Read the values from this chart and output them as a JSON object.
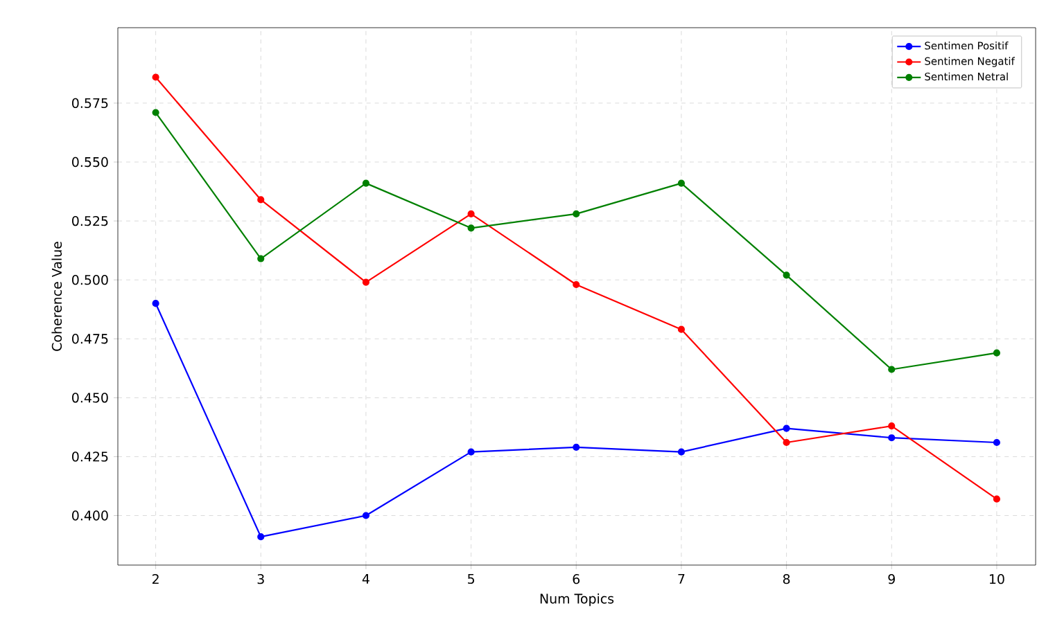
{
  "chart_data": {
    "type": "line",
    "xlabel": "Num Topics",
    "ylabel": "Coherence Value",
    "x": [
      2,
      3,
      4,
      5,
      6,
      7,
      8,
      9,
      10
    ],
    "series": [
      {
        "name": "Sentimen Positif",
        "color": "#0000ff",
        "values": [
          0.49,
          0.391,
          0.4,
          0.427,
          0.429,
          0.427,
          0.437,
          0.433,
          0.431
        ]
      },
      {
        "name": "Sentimen Negatif",
        "color": "#ff0000",
        "values": [
          0.586,
          0.534,
          0.499,
          0.528,
          0.498,
          0.479,
          0.431,
          0.438,
          0.407
        ]
      },
      {
        "name": "Sentimen Netral",
        "color": "#008000",
        "values": [
          0.571,
          0.509,
          0.541,
          0.522,
          0.528,
          0.541,
          0.502,
          0.462,
          0.469
        ]
      }
    ],
    "xlim": [
      1.64,
      10.37
    ],
    "ylim": [
      0.379,
      0.607
    ],
    "xticks": [
      2,
      3,
      4,
      5,
      6,
      7,
      8,
      9,
      10
    ],
    "yticks": [
      {
        "value": 0.4,
        "label": "0.400"
      },
      {
        "value": 0.425,
        "label": "0.425"
      },
      {
        "value": 0.45,
        "label": "0.450"
      },
      {
        "value": 0.475,
        "label": "0.475"
      },
      {
        "value": 0.5,
        "label": "0.500"
      },
      {
        "value": 0.525,
        "label": "0.525"
      },
      {
        "value": 0.55,
        "label": "0.550"
      },
      {
        "value": 0.575,
        "label": "0.575"
      }
    ],
    "grid": true,
    "legend": "top right",
    "marker": "circle",
    "line_style": "solid"
  }
}
